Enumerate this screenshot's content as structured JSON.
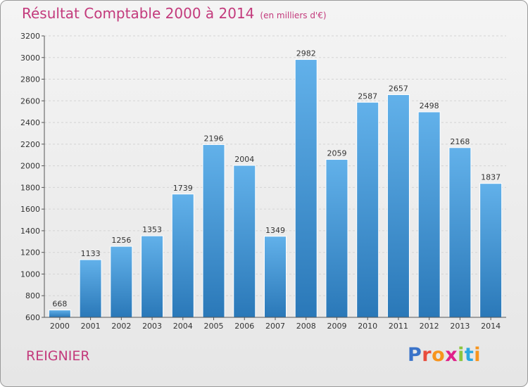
{
  "title": "Résultat Comptable 2000 à 2014",
  "subtitle": "(en milliers d'€)",
  "commune": "REIGNIER",
  "logo": {
    "letters": [
      "P",
      "r",
      "o",
      "x",
      "i",
      "t",
      "i"
    ],
    "colors": [
      "#3a73c9",
      "#e84c3d",
      "#f7941d",
      "#e0218a",
      "#8cc63f",
      "#2aa8e0",
      "#f7941d"
    ]
  },
  "colors": {
    "bar_top": "#62b1ea",
    "bar_bottom": "#2a78b8",
    "grid": "#d4d4d4",
    "axis": "#555555",
    "title": "#c33a7c"
  },
  "chart_data": {
    "type": "bar",
    "title": "Résultat Comptable 2000 à 2014",
    "subtitle": "(en milliers d'€)",
    "categories": [
      "2000",
      "2001",
      "2002",
      "2003",
      "2004",
      "2005",
      "2006",
      "2007",
      "2008",
      "2009",
      "2010",
      "2011",
      "2012",
      "2013",
      "2014"
    ],
    "values": [
      668,
      1133,
      1256,
      1353,
      1739,
      2196,
      2004,
      1349,
      2982,
      2059,
      2587,
      2657,
      2498,
      2168,
      1837
    ],
    "yticks": [
      600,
      800,
      1000,
      1200,
      1400,
      1600,
      1800,
      2000,
      2200,
      2400,
      2600,
      2800,
      3000,
      3200
    ],
    "ylim": [
      600,
      3200
    ],
    "xlabel": "",
    "ylabel": "",
    "grid": true
  }
}
